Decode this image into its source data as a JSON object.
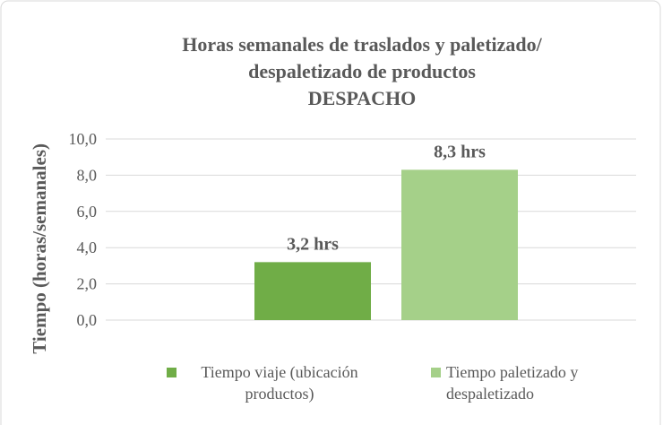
{
  "chart_data": {
    "type": "bar",
    "title": [
      "Horas semanales de traslados y paletizado/",
      "despaletizado de productos",
      "DESPACHO"
    ],
    "y_label": "Tiempo (horas/semanales)",
    "categories": [
      null
    ],
    "series": [
      {
        "name": "Tiempo viaje (ubicación productos)",
        "color": "#70ad47",
        "values": [
          3.2
        ],
        "value_labels": [
          "3,2 hrs"
        ]
      },
      {
        "name": "Tiempo paletizado y despaletizado",
        "color": "#a5d089",
        "values": [
          8.3
        ],
        "value_labels": [
          "8,3 hrs"
        ]
      }
    ],
    "ylim": [
      0,
      10
    ],
    "yticks": [
      {
        "value": 0,
        "label": "0,0"
      },
      {
        "value": 2,
        "label": "2,0"
      },
      {
        "value": 4,
        "label": "4,0"
      },
      {
        "value": 6,
        "label": "6,0"
      },
      {
        "value": 8,
        "label": "8,0"
      },
      {
        "value": 10,
        "label": "10,0"
      }
    ],
    "grid": true,
    "legend": "bottom"
  }
}
